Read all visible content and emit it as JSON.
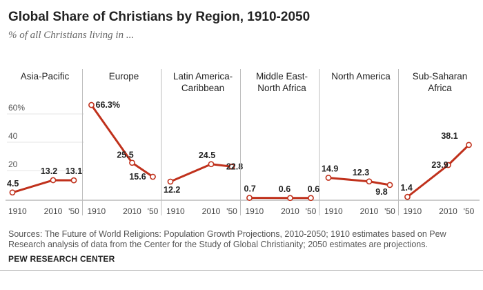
{
  "title": "Global Share of Christians by Region, 1910-2050",
  "subtitle": "% of all Christians living in ...",
  "source": "Sources: The Future of World Religions: Population Growth Projections, 2010-2050; 1910 estimates based on Pew Research analysis of data from the Center for the Study of Global Christianity; 2050 estimates are projections.",
  "organization": "PEW RESEARCH CENTER",
  "colors": {
    "line": "#c0311c",
    "marker_fill": "#ffffff",
    "divider": "#bdbdbd",
    "axis": "#999999"
  },
  "chart_data": {
    "type": "line",
    "ylim": [
      0,
      70
    ],
    "yticks": [
      {
        "value": 60,
        "label": "60%"
      },
      {
        "value": 40,
        "label": "40"
      },
      {
        "value": 20,
        "label": "20"
      }
    ],
    "x": [
      1910,
      2010,
      2050
    ],
    "x_tick_labels": [
      "1910",
      "2010",
      "'50"
    ],
    "grid": false,
    "panels": [
      {
        "name": [
          "Asia-Pacific"
        ],
        "values": [
          4.5,
          13.2,
          13.1
        ],
        "labels": [
          "4.5",
          "13.2",
          "13.1"
        ]
      },
      {
        "name": [
          "Europe"
        ],
        "values": [
          66.3,
          25.5,
          15.6
        ],
        "labels": [
          "66.3%",
          "25.5",
          "15.6"
        ]
      },
      {
        "name": [
          "Latin America-",
          "Caribbean"
        ],
        "values": [
          12.2,
          24.5,
          22.8
        ],
        "labels": [
          "12.2",
          "24.5",
          "22.8"
        ]
      },
      {
        "name": [
          "Middle East-",
          "North Africa"
        ],
        "values": [
          0.7,
          0.6,
          0.6
        ],
        "labels": [
          "0.7",
          "0.6",
          "0.6"
        ]
      },
      {
        "name": [
          "North America"
        ],
        "values": [
          14.9,
          12.3,
          9.8
        ],
        "labels": [
          "14.9",
          "12.3",
          "9.8"
        ]
      },
      {
        "name": [
          "Sub-Saharan",
          "Africa"
        ],
        "values": [
          1.4,
          23.9,
          38.1
        ],
        "labels": [
          "1.4",
          "23.9",
          "38.1"
        ]
      }
    ]
  }
}
